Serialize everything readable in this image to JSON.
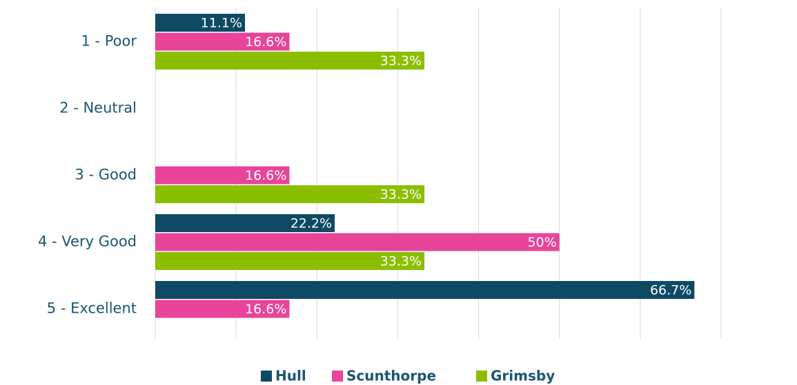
{
  "chart_data": {
    "type": "hbar",
    "categories": [
      "1 - Poor",
      "2 - Neutral",
      "3 - Good",
      "4 - Very Good",
      "5 - Excellent"
    ],
    "series": [
      {
        "name": "Hull",
        "color": "#0e4a64",
        "values": [
          11.1,
          null,
          null,
          22.2,
          66.7
        ],
        "value_labels": [
          "11.1%",
          null,
          null,
          "22.2%",
          "66.7%"
        ]
      },
      {
        "name": "Scunthorpe",
        "color": "#e8449a",
        "values": [
          16.6,
          null,
          16.6,
          50,
          16.6
        ],
        "value_labels": [
          "16.6%",
          null,
          "16.6%",
          "50%",
          "16.6%"
        ]
      },
      {
        "name": "Grimsby",
        "color": "#8cbe00",
        "values": [
          33.3,
          null,
          33.3,
          33.3,
          null
        ],
        "value_labels": [
          "33.3%",
          null,
          "33.3%",
          "33.3%",
          null
        ]
      }
    ],
    "xlim": [
      0,
      70
    ],
    "xticks": [
      0,
      10,
      20,
      30,
      40,
      50,
      60,
      70
    ],
    "grid": true
  }
}
